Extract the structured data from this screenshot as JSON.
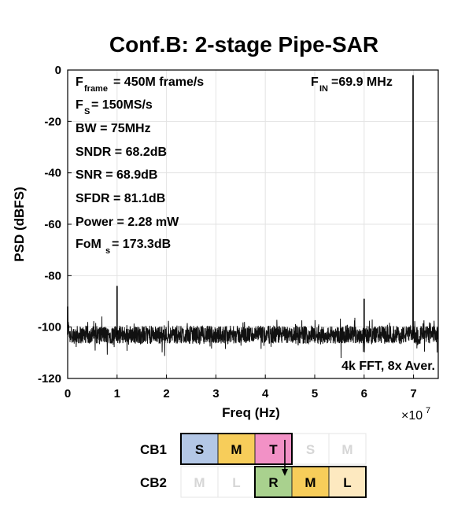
{
  "chart_data": {
    "type": "line",
    "title": "Conf.B: 2-stage Pipe-SAR",
    "xlabel": "Freq (Hz)",
    "ylabel": "PSD (dBFS)",
    "xlim": [
      0,
      75000000.0
    ],
    "ylim": [
      -120,
      0
    ],
    "x_ticks": [
      0,
      1,
      2,
      3,
      4,
      5,
      6,
      7
    ],
    "x_tick_labels": [
      "0",
      "1",
      "2",
      "3",
      "4",
      "5",
      "6",
      "7"
    ],
    "x_exponent_label": "×10",
    "x_exponent_power": "7",
    "y_ticks": [
      0,
      -20,
      -40,
      -60,
      -80,
      -100,
      -120
    ],
    "y_tick_labels": [
      "0",
      "-20",
      "-40",
      "-60",
      "-80",
      "-100",
      "-120"
    ],
    "grid": true,
    "noise_floor_dBFS": -103,
    "series": [
      {
        "peaks": [
          {
            "x": 0,
            "y": -92
          },
          {
            "x": 10000000.0,
            "y": -84
          },
          {
            "x": 60000000.0,
            "y": -89
          },
          {
            "x": 69900000.0,
            "y": -2
          }
        ]
      }
    ],
    "annotations": {
      "fframe_main": "F",
      "fframe_sub": "frame",
      "fframe_rest": " = 450M frame/s",
      "fs_main": "F",
      "fs_sub": "S",
      "fs_rest": " = 150MS/s",
      "bw": "BW = 75MHz",
      "sndr": "SNDR = 68.2dB",
      "snr": "SNR = 68.9dB",
      "sfdr": "SFDR = 81.1dB",
      "power": "Power = 2.28 mW",
      "fom_main": "FoM",
      "fom_sub": "s",
      "fom_rest": " = 173.3dB",
      "fin_main": "F",
      "fin_sub": "IN",
      "fin_rest": "=69.9 MHz",
      "fft": "4k FFT, 8x Aver."
    }
  },
  "diagram": {
    "rows": [
      {
        "label": "CB1",
        "cells": [
          {
            "text": "S",
            "color": "#b3c7e6",
            "active": true
          },
          {
            "text": "M",
            "color": "#f7cd5a",
            "active": true
          },
          {
            "text": "T",
            "color": "#f291c6",
            "active": true
          },
          {
            "text": "S",
            "color": "#ffffff",
            "active": false
          },
          {
            "text": "M",
            "color": "#ffffff",
            "active": false
          }
        ]
      },
      {
        "label": "CB2",
        "cells": [
          {
            "text": "M",
            "color": "#ffffff",
            "active": false
          },
          {
            "text": "L",
            "color": "#ffffff",
            "active": false
          },
          {
            "text": "R",
            "color": "#a9d18e",
            "active": true
          },
          {
            "text": "M",
            "color": "#f7cd5a",
            "active": true
          },
          {
            "text": "L",
            "color": "#fde9c0",
            "active": true
          }
        ]
      }
    ]
  }
}
